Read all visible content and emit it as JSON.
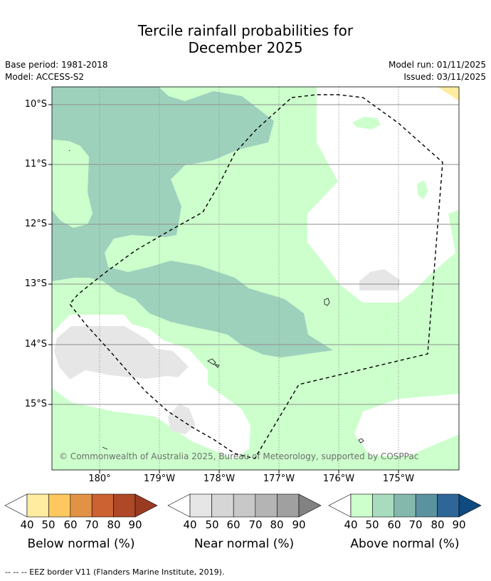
{
  "title_line1": "Tercile rainfall probabilities for",
  "title_line2": "December 2025",
  "meta": {
    "base_period": "Base period: 1981-2018",
    "model": "Model: ACCESS-S2",
    "model_run": "Model run: 01/11/2025",
    "issued": "Issued: 03/11/2025"
  },
  "axes": {
    "lat_labels": [
      "10°S",
      "11°S",
      "12°S",
      "13°S",
      "14°S",
      "15°S"
    ],
    "lon_labels": [
      "180°",
      "179°W",
      "178°W",
      "177°W",
      "176°W",
      "175°W"
    ]
  },
  "copyright": "© Commonwealth of Australia 2025, Bureau of Meteorology, supported by COSPPac",
  "colorbars": {
    "below": {
      "label": "Below normal (%)",
      "ticks": [
        "40",
        "50",
        "60",
        "70",
        "80",
        "90"
      ],
      "colors": [
        "#ffffff",
        "#ffeca0",
        "#fec75f",
        "#e19244",
        "#cc6131",
        "#ae4826",
        "#9a3a21"
      ]
    },
    "near": {
      "label": "Near normal (%)",
      "ticks": [
        "40",
        "50",
        "60",
        "70",
        "80",
        "90"
      ],
      "colors": [
        "#ffffff",
        "#e6e6e6",
        "#d6d6d6",
        "#c8c8c8",
        "#b4b4b4",
        "#a0a0a0",
        "#828282"
      ]
    },
    "above": {
      "label": "Above normal (%)",
      "ticks": [
        "40",
        "50",
        "60",
        "70",
        "80",
        "90"
      ],
      "colors": [
        "#ffffff",
        "#ccffcc",
        "#a9dcbd",
        "#84b8ad",
        "#5b929f",
        "#2e6698",
        "#0f4a80"
      ]
    }
  },
  "footnote": "--  --  -- EEZ border V11 (Flanders Marine Institute, 2019)."
}
